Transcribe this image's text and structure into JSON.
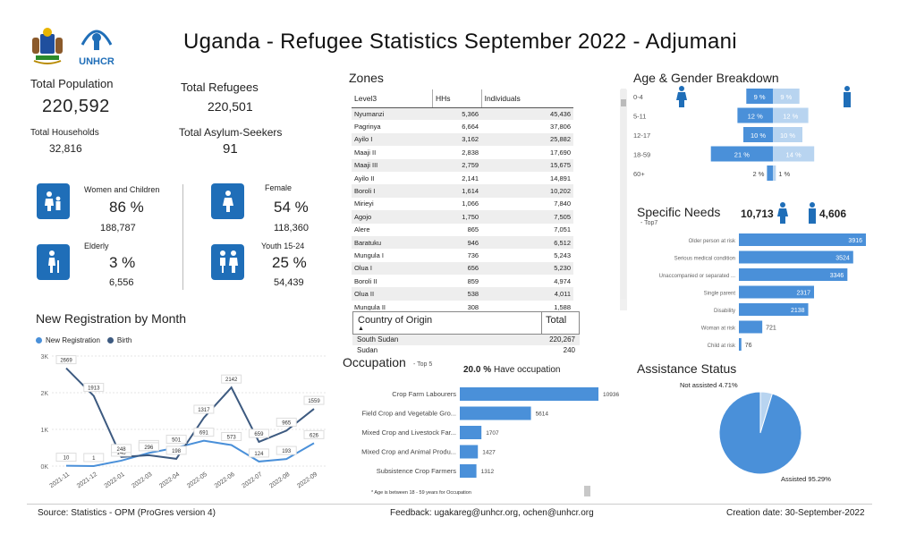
{
  "header": {
    "title": "Uganda - Refugee Statistics September 2022 - Adjumani",
    "unhcr_label": "UNHCR"
  },
  "kpis": {
    "total_population_label": "Total Population",
    "total_population": "220,592",
    "total_refugees_label": "Total Refugees",
    "total_refugees": "220,501",
    "total_households_label": "Total Households",
    "total_households": "32,816",
    "asylum_seekers_label": "Total Asylum-Seekers",
    "asylum_seekers": "91"
  },
  "demographics": {
    "women_children": {
      "label": "Women and Children",
      "pct": "86 %",
      "count": "188,787"
    },
    "female": {
      "label": "Female",
      "pct": "54 %",
      "count": "118,360"
    },
    "elderly": {
      "label": "Elderly",
      "pct": "3 %",
      "count": "6,556"
    },
    "youth": {
      "label": "Youth 15-24",
      "pct": "25 %",
      "count": "54,439"
    }
  },
  "zones": {
    "title": "Zones",
    "headers": [
      "Level3",
      "HHs",
      "Individuals"
    ],
    "rows": [
      [
        "Nyumanzi",
        "5,366",
        "45,436"
      ],
      [
        "Pagrinya",
        "6,664",
        "37,806"
      ],
      [
        "Ayilo I",
        "3,162",
        "25,882"
      ],
      [
        "Maaji II",
        "2,838",
        "17,690"
      ],
      [
        "Maaji III",
        "2,759",
        "15,675"
      ],
      [
        "Ayilo II",
        "2,141",
        "14,891"
      ],
      [
        "Boroli I",
        "1,614",
        "10,202"
      ],
      [
        "Mirieyi",
        "1,066",
        "7,840"
      ],
      [
        "Agojo",
        "1,750",
        "7,505"
      ],
      [
        "Alere",
        "865",
        "7,051"
      ],
      [
        "Baratuku",
        "946",
        "6,512"
      ],
      [
        "Mungula I",
        "736",
        "5,243"
      ],
      [
        "Olua I",
        "656",
        "5,230"
      ],
      [
        "Boroli II",
        "859",
        "4,974"
      ],
      [
        "Olua II",
        "538",
        "4,011"
      ],
      [
        "Mungula II",
        "308",
        "1,588"
      ]
    ]
  },
  "country_of_origin": {
    "headers": [
      "Country of Origin",
      "Total"
    ],
    "rows": [
      [
        "South Sudan",
        "220,267"
      ],
      [
        "Sudan",
        "240"
      ]
    ]
  },
  "registration": {
    "title": "New Registration by Month",
    "legend_new": "New Registration",
    "legend_birth": "Birth",
    "colors": {
      "new": "#4a90d9",
      "birth": "#3d5a80"
    }
  },
  "occupation": {
    "title": "Occupation",
    "subtitle": "- Top 5",
    "have_pct": "20.0 %",
    "have_label": "Have occupation",
    "note": "* Age is between 18 - 59 years for Occupation"
  },
  "age_gender": {
    "title": "Age & Gender Breakdown"
  },
  "specific_needs": {
    "title": "Specific Needs",
    "subtitle": "- Top7",
    "female_count": "10,713",
    "male_count": "4,606"
  },
  "assistance": {
    "title": "Assistance Status",
    "not_assisted_label": "Not assisted 4.71%",
    "assisted_label": "Assisted 95.29%"
  },
  "footer": {
    "source": "Source: Statistics - OPM (ProGres version 4)",
    "feedback": "Feedback: ugakareg@unhcr.org, ochen@unhcr.org",
    "creation": "Creation date: 30-September-2022"
  },
  "chart_data": [
    {
      "type": "line",
      "title": "New Registration by Month",
      "x": [
        "2021-11",
        "2021-12",
        "2022-01",
        "2022-03",
        "2022-04",
        "2022-05",
        "2022-06",
        "2022-07",
        "2022-08",
        "2022-09"
      ],
      "series": [
        {
          "name": "New Registration",
          "values": [
            10,
            1,
            148,
            356,
            501,
            691,
            573,
            124,
            193,
            626
          ]
        },
        {
          "name": "Birth",
          "values": [
            2669,
            1913,
            248,
            296,
            198,
            1317,
            2142,
            659,
            965,
            1559
          ]
        }
      ],
      "ylim": [
        0,
        3000
      ],
      "yticks": [
        "0K",
        "1K",
        "2K",
        "3K"
      ],
      "legend": "top-left"
    },
    {
      "type": "bar",
      "title": "Occupation",
      "categories": [
        "Crop Farm Labourers",
        "Field Crop and Vegetable Gro...",
        "Mixed Crop and Livestock Far...",
        "Mixed Crop and Animal Produ...",
        "Subsistence Crop Farmers"
      ],
      "values": [
        10936,
        5614,
        1707,
        1427,
        1312
      ]
    },
    {
      "type": "bar",
      "title": "Age & Gender Breakdown",
      "categories": [
        "0-4",
        "5-11",
        "12-17",
        "18-59",
        "60+"
      ],
      "series": [
        {
          "name": "Female",
          "values": [
            9,
            12,
            10,
            21,
            2
          ],
          "labels": [
            "9 %",
            "12 %",
            "10 %",
            "21 %",
            "2 %"
          ]
        },
        {
          "name": "Male",
          "values": [
            9,
            12,
            10,
            14,
            1
          ],
          "labels": [
            "9 %",
            "12 %",
            "10 %",
            "14 %",
            "1 %"
          ]
        }
      ]
    },
    {
      "type": "bar",
      "title": "Specific Needs",
      "categories": [
        "Older person at risk",
        "Serious medical condition",
        "Unaccompanied or separated ...",
        "Single parent",
        "Disability",
        "Woman at risk",
        "Child at risk"
      ],
      "values": [
        3916,
        3524,
        3346,
        2317,
        2138,
        721,
        76
      ]
    },
    {
      "type": "pie",
      "title": "Assistance Status",
      "categories": [
        "Assisted",
        "Not assisted"
      ],
      "values": [
        95.29,
        4.71
      ],
      "colors": [
        "#4a90d9",
        "#b8d4f0"
      ]
    }
  ]
}
